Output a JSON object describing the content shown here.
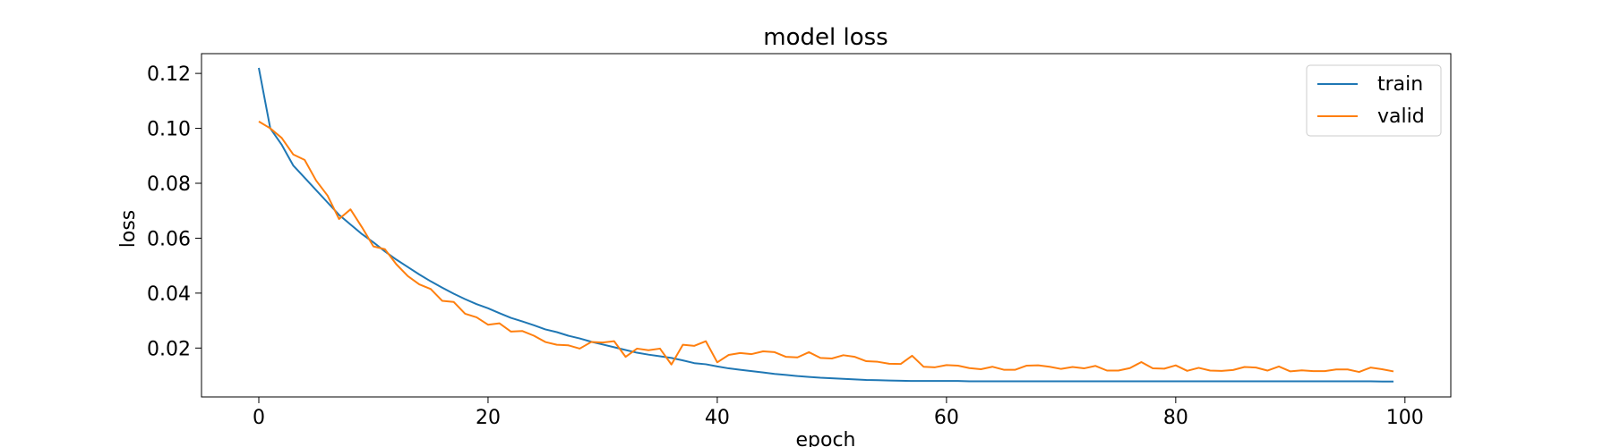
{
  "chart_data": {
    "type": "line",
    "title": "model loss",
    "xlabel": "epoch",
    "ylabel": "loss",
    "xlim": [
      -5,
      104
    ],
    "ylim": [
      0.0022,
      0.1272
    ],
    "xticks": [
      0,
      20,
      40,
      60,
      80,
      100
    ],
    "yticks": [
      0.02,
      0.04,
      0.06,
      0.08,
      0.1,
      0.12
    ],
    "ytick_labels": [
      "0.02",
      "0.04",
      "0.06",
      "0.08",
      "0.10",
      "0.12"
    ],
    "grid": false,
    "legend": "top-right",
    "series": [
      {
        "name": "train",
        "color": "#1f77b4",
        "values": [
          0.122,
          0.1,
          0.094,
          0.0865,
          0.082,
          0.0775,
          0.073,
          0.0685,
          0.065,
          0.0615,
          0.0585,
          0.0552,
          0.0522,
          0.0495,
          0.0468,
          0.0443,
          0.042,
          0.0398,
          0.0378,
          0.036,
          0.0345,
          0.0327,
          0.031,
          0.0297,
          0.0283,
          0.0268,
          0.0258,
          0.0245,
          0.0235,
          0.0223,
          0.0213,
          0.0203,
          0.0193,
          0.0183,
          0.0176,
          0.017,
          0.0164,
          0.0155,
          0.0145,
          0.0141,
          0.0133,
          0.0126,
          0.0121,
          0.0116,
          0.0111,
          0.0106,
          0.0102,
          0.0098,
          0.0095,
          0.0092,
          0.009,
          0.0088,
          0.0086,
          0.0084,
          0.0083,
          0.0082,
          0.0081,
          0.008,
          0.008,
          0.008,
          0.008,
          0.008,
          0.0079,
          0.0079,
          0.0079,
          0.0079,
          0.0079,
          0.0079,
          0.0079,
          0.0079,
          0.0079,
          0.0079,
          0.0079,
          0.0079,
          0.0079,
          0.0079,
          0.0079,
          0.0079,
          0.0079,
          0.0079,
          0.0079,
          0.0079,
          0.0079,
          0.0079,
          0.0079,
          0.0079,
          0.0079,
          0.0079,
          0.0079,
          0.0079,
          0.0079,
          0.0079,
          0.0079,
          0.0079,
          0.0079,
          0.0079,
          0.0079,
          0.0079,
          0.0078,
          0.0078
        ]
      },
      {
        "name": "valid",
        "color": "#ff7f0e",
        "values": [
          0.1025,
          0.1,
          0.0965,
          0.0905,
          0.0885,
          0.081,
          0.0755,
          0.067,
          0.0705,
          0.064,
          0.057,
          0.056,
          0.0505,
          0.0462,
          0.0432,
          0.0415,
          0.0372,
          0.0368,
          0.0325,
          0.0312,
          0.0285,
          0.029,
          0.026,
          0.0262,
          0.0245,
          0.0222,
          0.0212,
          0.021,
          0.0198,
          0.0222,
          0.022,
          0.0225,
          0.0168,
          0.0198,
          0.0192,
          0.0198,
          0.014,
          0.0212,
          0.0208,
          0.0225,
          0.0148,
          0.0175,
          0.0182,
          0.0178,
          0.0188,
          0.0185,
          0.0168,
          0.0166,
          0.0185,
          0.0164,
          0.0162,
          0.0174,
          0.0168,
          0.0152,
          0.015,
          0.0143,
          0.0142,
          0.0172,
          0.0132,
          0.013,
          0.0138,
          0.0136,
          0.0127,
          0.0123,
          0.0132,
          0.0121,
          0.0121,
          0.0136,
          0.0137,
          0.0132,
          0.0124,
          0.0131,
          0.0126,
          0.0135,
          0.0118,
          0.0118,
          0.0127,
          0.0149,
          0.0126,
          0.0125,
          0.0137,
          0.0117,
          0.0128,
          0.0118,
          0.0117,
          0.012,
          0.0131,
          0.0129,
          0.0118,
          0.0133,
          0.0115,
          0.0119,
          0.0116,
          0.0116,
          0.0122,
          0.0122,
          0.0113,
          0.0129,
          0.0123,
          0.0115
        ]
      }
    ]
  }
}
